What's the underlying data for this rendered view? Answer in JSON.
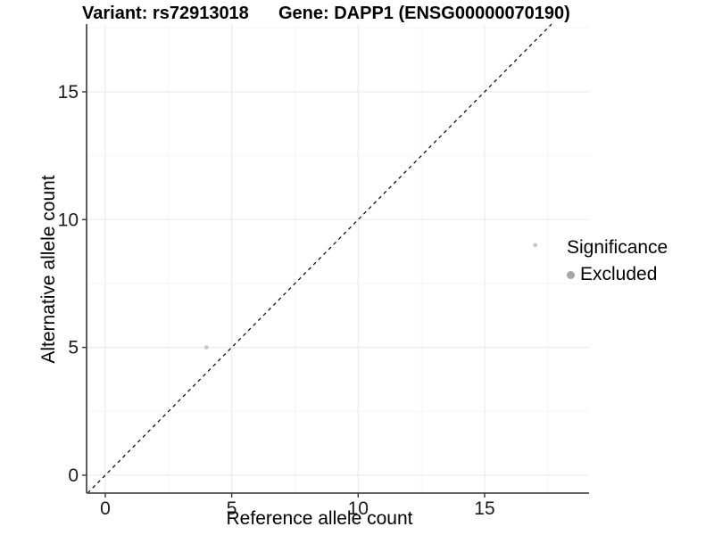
{
  "chart_data": {
    "type": "scatter",
    "title_variant": "Variant: rs72913018",
    "title_gene": "Gene: DAPP1 (ENSG00000070190)",
    "xlabel": "Reference allele count",
    "ylabel": "Alternative allele count",
    "xlim": [
      -0.74,
      19.13
    ],
    "ylim": [
      -0.7,
      17.65
    ],
    "x_ticks": [
      0,
      5,
      10,
      15
    ],
    "y_ticks": [
      0,
      5,
      10,
      15
    ],
    "x_minor_ticks": [
      2.5,
      7.5,
      12.5,
      17.5
    ],
    "y_minor_ticks": [
      2.5,
      7.5,
      12.5,
      17.5
    ],
    "grid": true,
    "identity_line": {
      "type": "y=x",
      "style": "dashed",
      "color": "#000000"
    },
    "series": [
      {
        "name": "Excluded",
        "points": [
          {
            "x": 4,
            "y": 5
          },
          {
            "x": 17,
            "y": 9
          }
        ]
      }
    ],
    "legend": {
      "position": "right",
      "title": "Significance",
      "items": [
        {
          "label": "Excluded",
          "color": "#a6a6a6"
        }
      ]
    },
    "colors": {
      "point": "#c8c8c8",
      "legend_key": "#a6a6a6",
      "grid_major": "#ebebeb",
      "grid_minor": "#f5f5f5",
      "axis_line": "#4d4d4d",
      "tick_mark": "#333333",
      "tick_label": "#1a1a1a",
      "identity_line": "#000000"
    }
  }
}
